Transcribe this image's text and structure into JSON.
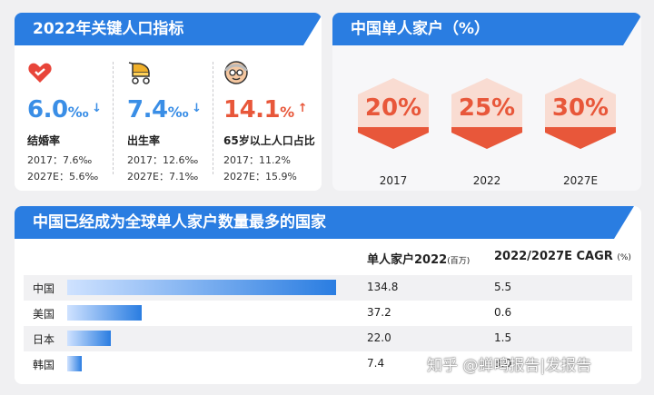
{
  "panel_indicators": {
    "title": "2022年关键人口指标",
    "stats": [
      {
        "icon": "heart-icon",
        "value": "6.0",
        "unit": "‰",
        "arrow": "↓",
        "label": "结婚率",
        "line1": "2017：7.6‰",
        "line2": "2027E：5.6‰",
        "color": "#3a8ee6"
      },
      {
        "icon": "stroller-icon",
        "value": "7.4",
        "unit": "‰",
        "arrow": "↓",
        "label": "出生率",
        "line1": "2017：12.6‰",
        "line2": "2027E：7.1‰",
        "color": "#3a8ee6"
      },
      {
        "icon": "elderly-icon",
        "value": "14.1",
        "unit": "%",
        "arrow": "↑",
        "label": "65岁以上人口占比",
        "line1": "2017：11.2%",
        "line2": "2027E：15.9%",
        "color": "#e8573a"
      }
    ]
  },
  "panel_households": {
    "title": "中国单人家户（%）",
    "items": [
      {
        "pct": "20%",
        "year": "2017"
      },
      {
        "pct": "25%",
        "year": "2022"
      },
      {
        "pct": "30%",
        "year": "2027E"
      }
    ]
  },
  "panel_countries": {
    "title": "中国已经成为全球单人家户数量最多的国家",
    "col1_main": "单人家户2022",
    "col1_unit": "(百万)",
    "col2_main": "2022/2027E CAGR",
    "col2_unit": "(%)",
    "rows": [
      {
        "country": "中国",
        "households": "134.8",
        "households_value": 134.8,
        "cagr": "5.5"
      },
      {
        "country": "美国",
        "households": "37.2",
        "households_value": 37.2,
        "cagr": "0.6"
      },
      {
        "country": "日本",
        "households": "22.0",
        "households_value": 22.0,
        "cagr": "1.5"
      },
      {
        "country": "韩国",
        "households": "7.4",
        "households_value": 7.4,
        "cagr": "3.0"
      }
    ]
  },
  "watermark": "知乎 @蝉鸣报告|发报告",
  "colors": {
    "brand_blue": "#2a7de1",
    "accent_red": "#e8573a",
    "light_blue": "#3a8ee6"
  }
}
